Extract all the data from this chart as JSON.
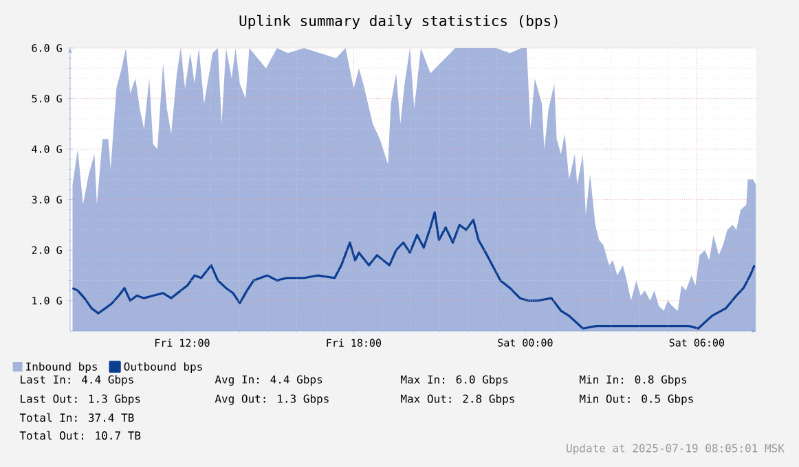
{
  "chart_data": {
    "type": "area",
    "title": "Uplink summary daily statistics (bps)",
    "xlim": [
      "2025-07-18T08:05",
      "2025-07-19T08:05"
    ],
    "ylim": [
      0.4,
      6.0
    ],
    "xticks": [
      {
        "value": "2025-07-18T12:00",
        "label": "Fri 12:00"
      },
      {
        "value": "2025-07-18T18:00",
        "label": "Fri 18:00"
      },
      {
        "value": "2025-07-19T00:00",
        "label": "Sat 00:00"
      },
      {
        "value": "2025-07-19T06:00",
        "label": "Sat 06:00"
      }
    ],
    "yticks": [
      {
        "value": 1,
        "label": "1.0 G"
      },
      {
        "value": 2,
        "label": "2.0 G"
      },
      {
        "value": 3,
        "label": "3.0 G"
      },
      {
        "value": 4,
        "label": "4.0 G"
      },
      {
        "value": 5,
        "label": "5.0 G"
      },
      {
        "value": 6,
        "label": "6.0 G"
      }
    ],
    "grid": true,
    "legend": "bottom left",
    "series": [
      {
        "name": "Inbound bps",
        "color": "#a4b4dc",
        "x": [
          "2025-07-18T08:10",
          "2025-07-18T08:21",
          "2025-07-18T08:32",
          "2025-07-18T08:44",
          "2025-07-18T08:56",
          "2025-07-18T09:01",
          "2025-07-18T09:13",
          "2025-07-18T09:25",
          "2025-07-18T09:30",
          "2025-07-18T09:42",
          "2025-07-18T09:53",
          "2025-07-18T10:02",
          "2025-07-18T10:11",
          "2025-07-18T10:22",
          "2025-07-18T10:31",
          "2025-07-18T10:40",
          "2025-07-18T10:51",
          "2025-07-18T10:59",
          "2025-07-18T11:08",
          "2025-07-18T11:20",
          "2025-07-18T11:28",
          "2025-07-18T11:37",
          "2025-07-18T11:49",
          "2025-07-18T11:57",
          "2025-07-18T12:06",
          "2025-07-18T12:17",
          "2025-07-18T12:26",
          "2025-07-18T12:35",
          "2025-07-18T12:46",
          "2025-07-18T12:55",
          "2025-07-18T13:04",
          "2025-07-18T13:15",
          "2025-07-18T13:23",
          "2025-07-18T13:32",
          "2025-07-18T13:44",
          "2025-07-18T13:52",
          "2025-07-18T14:01",
          "2025-07-18T14:13",
          "2025-07-18T14:21",
          "2025-07-18T14:56",
          "2025-07-18T15:19",
          "2025-07-18T15:42",
          "2025-07-18T16:16",
          "2025-07-18T17:23",
          "2025-07-18T17:43",
          "2025-07-18T18:00",
          "2025-07-18T18:11",
          "2025-07-18T18:20",
          "2025-07-18T18:40",
          "2025-07-18T18:55",
          "2025-07-18T19:12",
          "2025-07-18T19:18",
          "2025-07-18T19:29",
          "2025-07-18T19:38",
          "2025-07-18T19:47",
          "2025-07-18T19:58",
          "2025-07-18T20:07",
          "2025-07-18T20:21",
          "2025-07-18T20:41",
          "2025-07-18T21:33",
          "2025-07-18T22:59",
          "2025-07-18T23:28",
          "2025-07-18T23:52",
          "2025-07-19T00:03",
          "2025-07-19T00:11",
          "2025-07-19T00:20",
          "2025-07-19T00:35",
          "2025-07-19T00:40",
          "2025-07-19T00:49",
          "2025-07-19T01:01",
          "2025-07-19T01:06",
          "2025-07-19T01:15",
          "2025-07-19T01:23",
          "2025-07-19T01:32",
          "2025-07-19T01:44",
          "2025-07-19T01:49",
          "2025-07-19T02:01",
          "2025-07-19T02:07",
          "2025-07-19T02:16",
          "2025-07-19T02:27",
          "2025-07-19T02:35",
          "2025-07-19T02:44",
          "2025-07-19T02:56",
          "2025-07-19T03:04",
          "2025-07-19T03:13",
          "2025-07-19T03:25",
          "2025-07-19T03:33",
          "2025-07-19T03:42",
          "2025-07-19T03:53",
          "2025-07-19T04:02",
          "2025-07-19T04:11",
          "2025-07-19T04:22",
          "2025-07-19T04:31",
          "2025-07-19T04:40",
          "2025-07-19T04:51",
          "2025-07-19T04:59",
          "2025-07-19T05:08",
          "2025-07-19T05:20",
          "2025-07-19T05:28",
          "2025-07-19T05:37",
          "2025-07-19T05:49",
          "2025-07-19T05:57",
          "2025-07-19T06:06",
          "2025-07-19T06:17",
          "2025-07-19T06:26",
          "2025-07-19T06:35",
          "2025-07-19T06:46",
          "2025-07-19T06:55",
          "2025-07-19T07:04",
          "2025-07-19T07:15",
          "2025-07-19T07:23",
          "2025-07-19T07:32",
          "2025-07-19T07:44",
          "2025-07-19T07:47",
          "2025-07-19T07:58",
          "2025-07-19T08:04"
        ],
        "values": [
          3.3,
          4.0,
          2.9,
          3.5,
          3.9,
          2.9,
          4.2,
          4.2,
          3.6,
          5.2,
          5.6,
          6.0,
          5.1,
          5.4,
          4.8,
          4.4,
          5.4,
          4.1,
          4.0,
          5.7,
          4.8,
          4.3,
          5.5,
          6.0,
          5.2,
          5.9,
          5.3,
          6.0,
          4.9,
          5.4,
          5.9,
          6.0,
          4.5,
          6.0,
          5.4,
          6.0,
          5.3,
          5.0,
          6.0,
          5.6,
          6.0,
          5.9,
          6.0,
          5.8,
          6.0,
          5.2,
          5.6,
          5.3,
          4.5,
          4.2,
          3.7,
          4.9,
          5.5,
          4.5,
          5.3,
          6.0,
          4.8,
          6.0,
          5.5,
          6.0,
          6.0,
          5.9,
          6.0,
          6.0,
          4.4,
          5.4,
          4.9,
          4.0,
          4.8,
          5.3,
          4.2,
          3.9,
          4.3,
          3.4,
          3.9,
          3.3,
          3.9,
          2.7,
          3.5,
          2.5,
          2.2,
          2.1,
          1.7,
          1.8,
          1.5,
          1.7,
          1.4,
          1.0,
          1.4,
          1.1,
          1.2,
          1.0,
          1.2,
          0.9,
          0.8,
          1.0,
          0.9,
          0.8,
          1.3,
          1.2,
          1.5,
          1.3,
          1.9,
          2.0,
          1.8,
          2.3,
          1.9,
          2.1,
          2.4,
          2.5,
          2.4,
          2.8,
          2.9,
          3.4,
          3.4,
          3.3
        ]
      },
      {
        "name": "Outbound bps",
        "type": "line",
        "color": "#0b3d91",
        "x": [
          "2025-07-18T08:10",
          "2025-07-18T08:21",
          "2025-07-18T08:35",
          "2025-07-18T08:50",
          "2025-07-18T09:04",
          "2025-07-18T09:19",
          "2025-07-18T09:33",
          "2025-07-18T09:47",
          "2025-07-18T09:59",
          "2025-07-18T10:11",
          "2025-07-18T10:25",
          "2025-07-18T10:40",
          "2025-07-18T10:59",
          "2025-07-18T11:20",
          "2025-07-18T11:37",
          "2025-07-18T11:57",
          "2025-07-18T12:11",
          "2025-07-18T12:26",
          "2025-07-18T12:40",
          "2025-07-18T13:01",
          "2025-07-18T13:15",
          "2025-07-18T13:32",
          "2025-07-18T13:47",
          "2025-07-18T14:01",
          "2025-07-18T14:16",
          "2025-07-18T14:30",
          "2025-07-18T14:44",
          "2025-07-18T14:59",
          "2025-07-18T15:19",
          "2025-07-18T15:39",
          "2025-07-18T15:56",
          "2025-07-18T16:16",
          "2025-07-18T16:45",
          "2025-07-18T17:20",
          "2025-07-18T17:34",
          "2025-07-18T17:52",
          "2025-07-18T18:03",
          "2025-07-18T18:11",
          "2025-07-18T18:32",
          "2025-07-18T18:49",
          "2025-07-18T19:15",
          "2025-07-18T19:29",
          "2025-07-18T19:44",
          "2025-07-18T19:58",
          "2025-07-18T20:13",
          "2025-07-18T20:27",
          "2025-07-18T20:41",
          "2025-07-18T20:50",
          "2025-07-18T20:59",
          "2025-07-18T21:13",
          "2025-07-18T21:28",
          "2025-07-18T21:42",
          "2025-07-18T21:56",
          "2025-07-18T22:11",
          "2025-07-18T22:22",
          "2025-07-18T22:37",
          "2025-07-18T22:51",
          "2025-07-18T23:08",
          "2025-07-18T23:28",
          "2025-07-18T23:49",
          "2025-07-19T00:06",
          "2025-07-19T00:26",
          "2025-07-19T00:55",
          "2025-07-19T01:15",
          "2025-07-19T01:32",
          "2025-07-19T02:01",
          "2025-07-19T02:30",
          "2025-07-19T03:10",
          "2025-07-19T03:47",
          "2025-07-19T04:25",
          "2025-07-19T05:05",
          "2025-07-19T05:43",
          "2025-07-19T06:03",
          "2025-07-19T06:32",
          "2025-07-19T07:01",
          "2025-07-19T07:23",
          "2025-07-19T07:38",
          "2025-07-19T07:52",
          "2025-07-19T08:01"
        ],
        "values": [
          1.25,
          1.2,
          1.05,
          0.85,
          0.75,
          0.85,
          0.95,
          1.1,
          1.25,
          1.0,
          1.1,
          1.05,
          1.1,
          1.15,
          1.05,
          1.2,
          1.3,
          1.5,
          1.45,
          1.7,
          1.4,
          1.25,
          1.15,
          0.95,
          1.2,
          1.4,
          1.45,
          1.5,
          1.4,
          1.45,
          1.45,
          1.45,
          1.5,
          1.45,
          1.7,
          2.15,
          1.8,
          1.95,
          1.7,
          1.9,
          1.7,
          2.0,
          2.15,
          1.95,
          2.3,
          2.05,
          2.45,
          2.75,
          2.2,
          2.45,
          2.15,
          2.5,
          2.4,
          2.6,
          2.2,
          1.95,
          1.7,
          1.4,
          1.25,
          1.05,
          1.0,
          1.0,
          1.05,
          0.8,
          0.7,
          0.45,
          0.5,
          0.5,
          0.5,
          0.5,
          0.5,
          0.5,
          0.45,
          0.7,
          0.85,
          1.1,
          1.25,
          1.5,
          1.7
        ]
      }
    ],
    "annotations": [
      "Last In: 4.4 Gbps",
      "Avg In: 4.4 Gbps",
      "Max In: 6.0 Gbps",
      "Min In: 0.8 Gbps",
      "Last Out: 1.3 Gbps",
      "Avg Out: 1.3 Gbps",
      "Max Out: 2.8 Gbps",
      "Min Out: 0.5 Gbps",
      "Total In: 37.4 TB",
      "Total Out: 10.7 TB",
      "Update at 2025-07-19 08:05:01 MSK"
    ]
  }
}
